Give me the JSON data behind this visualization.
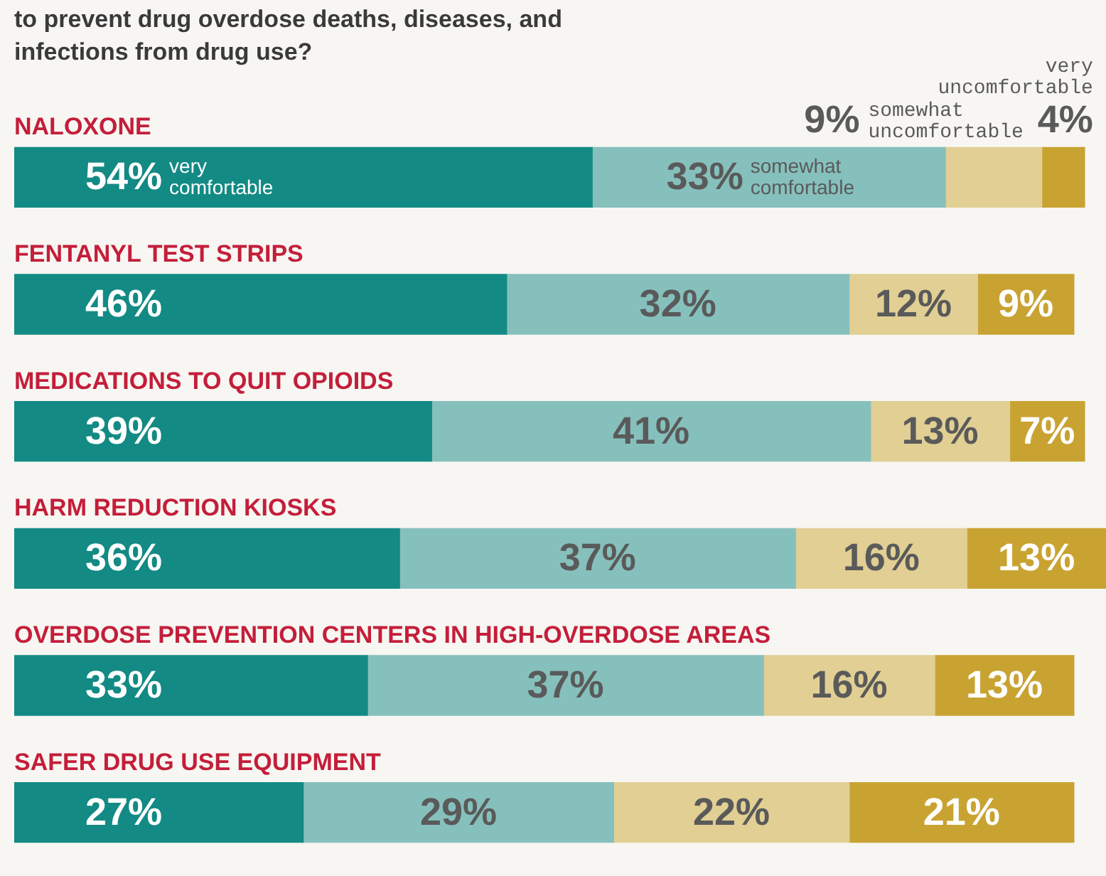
{
  "chart_data": {
    "type": "bar",
    "orientation": "horizontal",
    "stacked": true,
    "tick_labels": "y",
    "legend": false,
    "grid": false,
    "title": "to prevent drug overdose deaths, diseases, and infections from drug use?",
    "categories": [
      "NALOXONE",
      "FENTANYL TEST STRIPS",
      "MEDICATIONS TO QUIT OPIOIDS",
      "HARM REDUCTION KIOSKS",
      "OVERDOSE PREVENTION CENTERS IN HIGH-OVERDOSE AREAS",
      "SAFER DRUG USE EQUIPMENT"
    ],
    "series": [
      {
        "name": "very comfortable",
        "color": "#138a84",
        "values": [
          54,
          46,
          39,
          36,
          33,
          27
        ],
        "value_labels": [
          "54%",
          "46%",
          "39%",
          "36%",
          "33%",
          "27%"
        ]
      },
      {
        "name": "somewhat comfortable",
        "color": "#86c0bc",
        "values": [
          33,
          32,
          41,
          37,
          37,
          29
        ],
        "value_labels": [
          "33%",
          "32%",
          "41%",
          "37%",
          "37%",
          "29%"
        ]
      },
      {
        "name": "somewhat uncomfortable",
        "color": "#e1cf94",
        "values": [
          9,
          12,
          13,
          16,
          16,
          22
        ],
        "value_labels": [
          "9%",
          "12%",
          "13%",
          "16%",
          "16%",
          "22%"
        ]
      },
      {
        "name": "very uncomfortable",
        "color": "#c9a332",
        "values": [
          4,
          9,
          7,
          13,
          13,
          21
        ],
        "value_labels": [
          "4%",
          "9%",
          "7%",
          "13%",
          "13%",
          "21%"
        ]
      }
    ]
  }
}
